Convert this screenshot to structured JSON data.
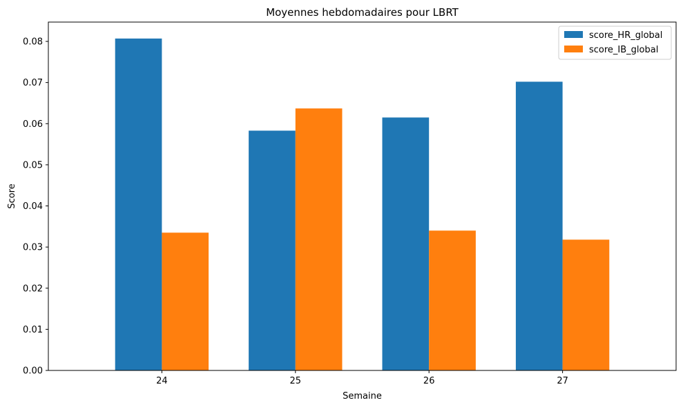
{
  "chart_data": {
    "type": "bar",
    "title": "Moyennes hebdomadaires pour LBRT",
    "xlabel": "Semaine",
    "ylabel": "Score",
    "categories": [
      "24",
      "25",
      "26",
      "27"
    ],
    "series": [
      {
        "name": "score_HR_global",
        "color": "#1f77b4",
        "values": [
          0.0807,
          0.0583,
          0.0615,
          0.0702
        ]
      },
      {
        "name": "score_IB_global",
        "color": "#ff7f0e",
        "values": [
          0.0335,
          0.0637,
          0.034,
          0.0318
        ]
      }
    ],
    "ylim": [
      0,
      0.0847
    ],
    "yticks": [
      "0.00",
      "0.01",
      "0.02",
      "0.03",
      "0.04",
      "0.05",
      "0.06",
      "0.07",
      "0.08"
    ],
    "grid": false,
    "legend_position": "top-right"
  }
}
